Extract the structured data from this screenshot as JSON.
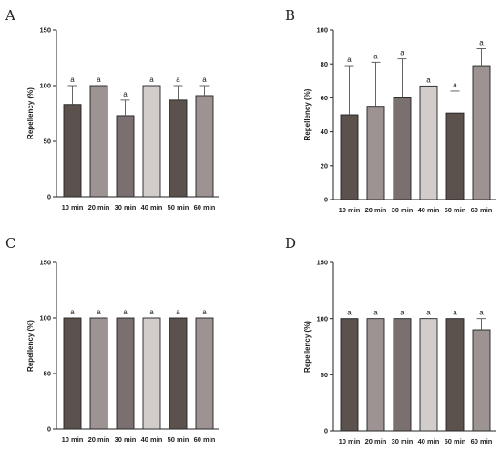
{
  "chart_data": [
    {
      "type": "bar",
      "panel": "A",
      "categories": [
        "10 min",
        "20 min",
        "30 min",
        "40 min",
        "50 min",
        "60 min"
      ],
      "values": [
        83,
        100,
        73,
        100,
        87,
        91
      ],
      "errors": [
        17,
        0,
        14,
        0,
        13,
        9
      ],
      "significance": [
        "a",
        "a",
        "a",
        "a",
        "a",
        "a"
      ],
      "ylabel": "Repellency (%)",
      "ylim": [
        0,
        150
      ],
      "yticks": [
        0,
        50,
        100,
        150
      ]
    },
    {
      "type": "bar",
      "panel": "B",
      "categories": [
        "10 min",
        "20 min",
        "30 min",
        "40 min",
        "50 min",
        "60 min"
      ],
      "values": [
        50,
        55,
        60,
        67,
        51,
        79
      ],
      "errors": [
        29,
        26,
        23,
        0,
        13,
        10
      ],
      "significance": [
        "a",
        "a",
        "a",
        "a",
        "a",
        "a"
      ],
      "ylabel": "Repellency (%)",
      "ylim": [
        0,
        100
      ],
      "yticks": [
        0,
        20,
        40,
        60,
        80,
        100
      ]
    },
    {
      "type": "bar",
      "panel": "C",
      "categories": [
        "10 min",
        "20 min",
        "30 min",
        "40 min",
        "50 min",
        "60 min"
      ],
      "values": [
        100,
        100,
        100,
        100,
        100,
        100
      ],
      "errors": [
        0,
        0,
        0,
        0,
        0,
        0
      ],
      "significance": [
        "a",
        "a",
        "a",
        "a",
        "a",
        "a"
      ],
      "ylabel": "Repellency (%)",
      "ylim": [
        0,
        150
      ],
      "yticks": [
        0,
        50,
        100,
        150
      ]
    },
    {
      "type": "bar",
      "panel": "D",
      "categories": [
        "10 min",
        "20 min",
        "30 min",
        "40 min",
        "50 min",
        "60 min"
      ],
      "values": [
        100,
        100,
        100,
        100,
        100,
        90
      ],
      "errors": [
        0,
        0,
        0,
        0,
        0,
        10
      ],
      "significance": [
        "a",
        "a",
        "a",
        "a",
        "a",
        "a"
      ],
      "ylabel": "Repellency (%)",
      "ylim": [
        0,
        150
      ],
      "yticks": [
        0,
        50,
        100,
        150
      ]
    }
  ],
  "bar_colors": [
    "#5b524d",
    "#9d9393",
    "#7a7070",
    "#d2cdcb",
    "#5b524d",
    "#9d9393"
  ]
}
